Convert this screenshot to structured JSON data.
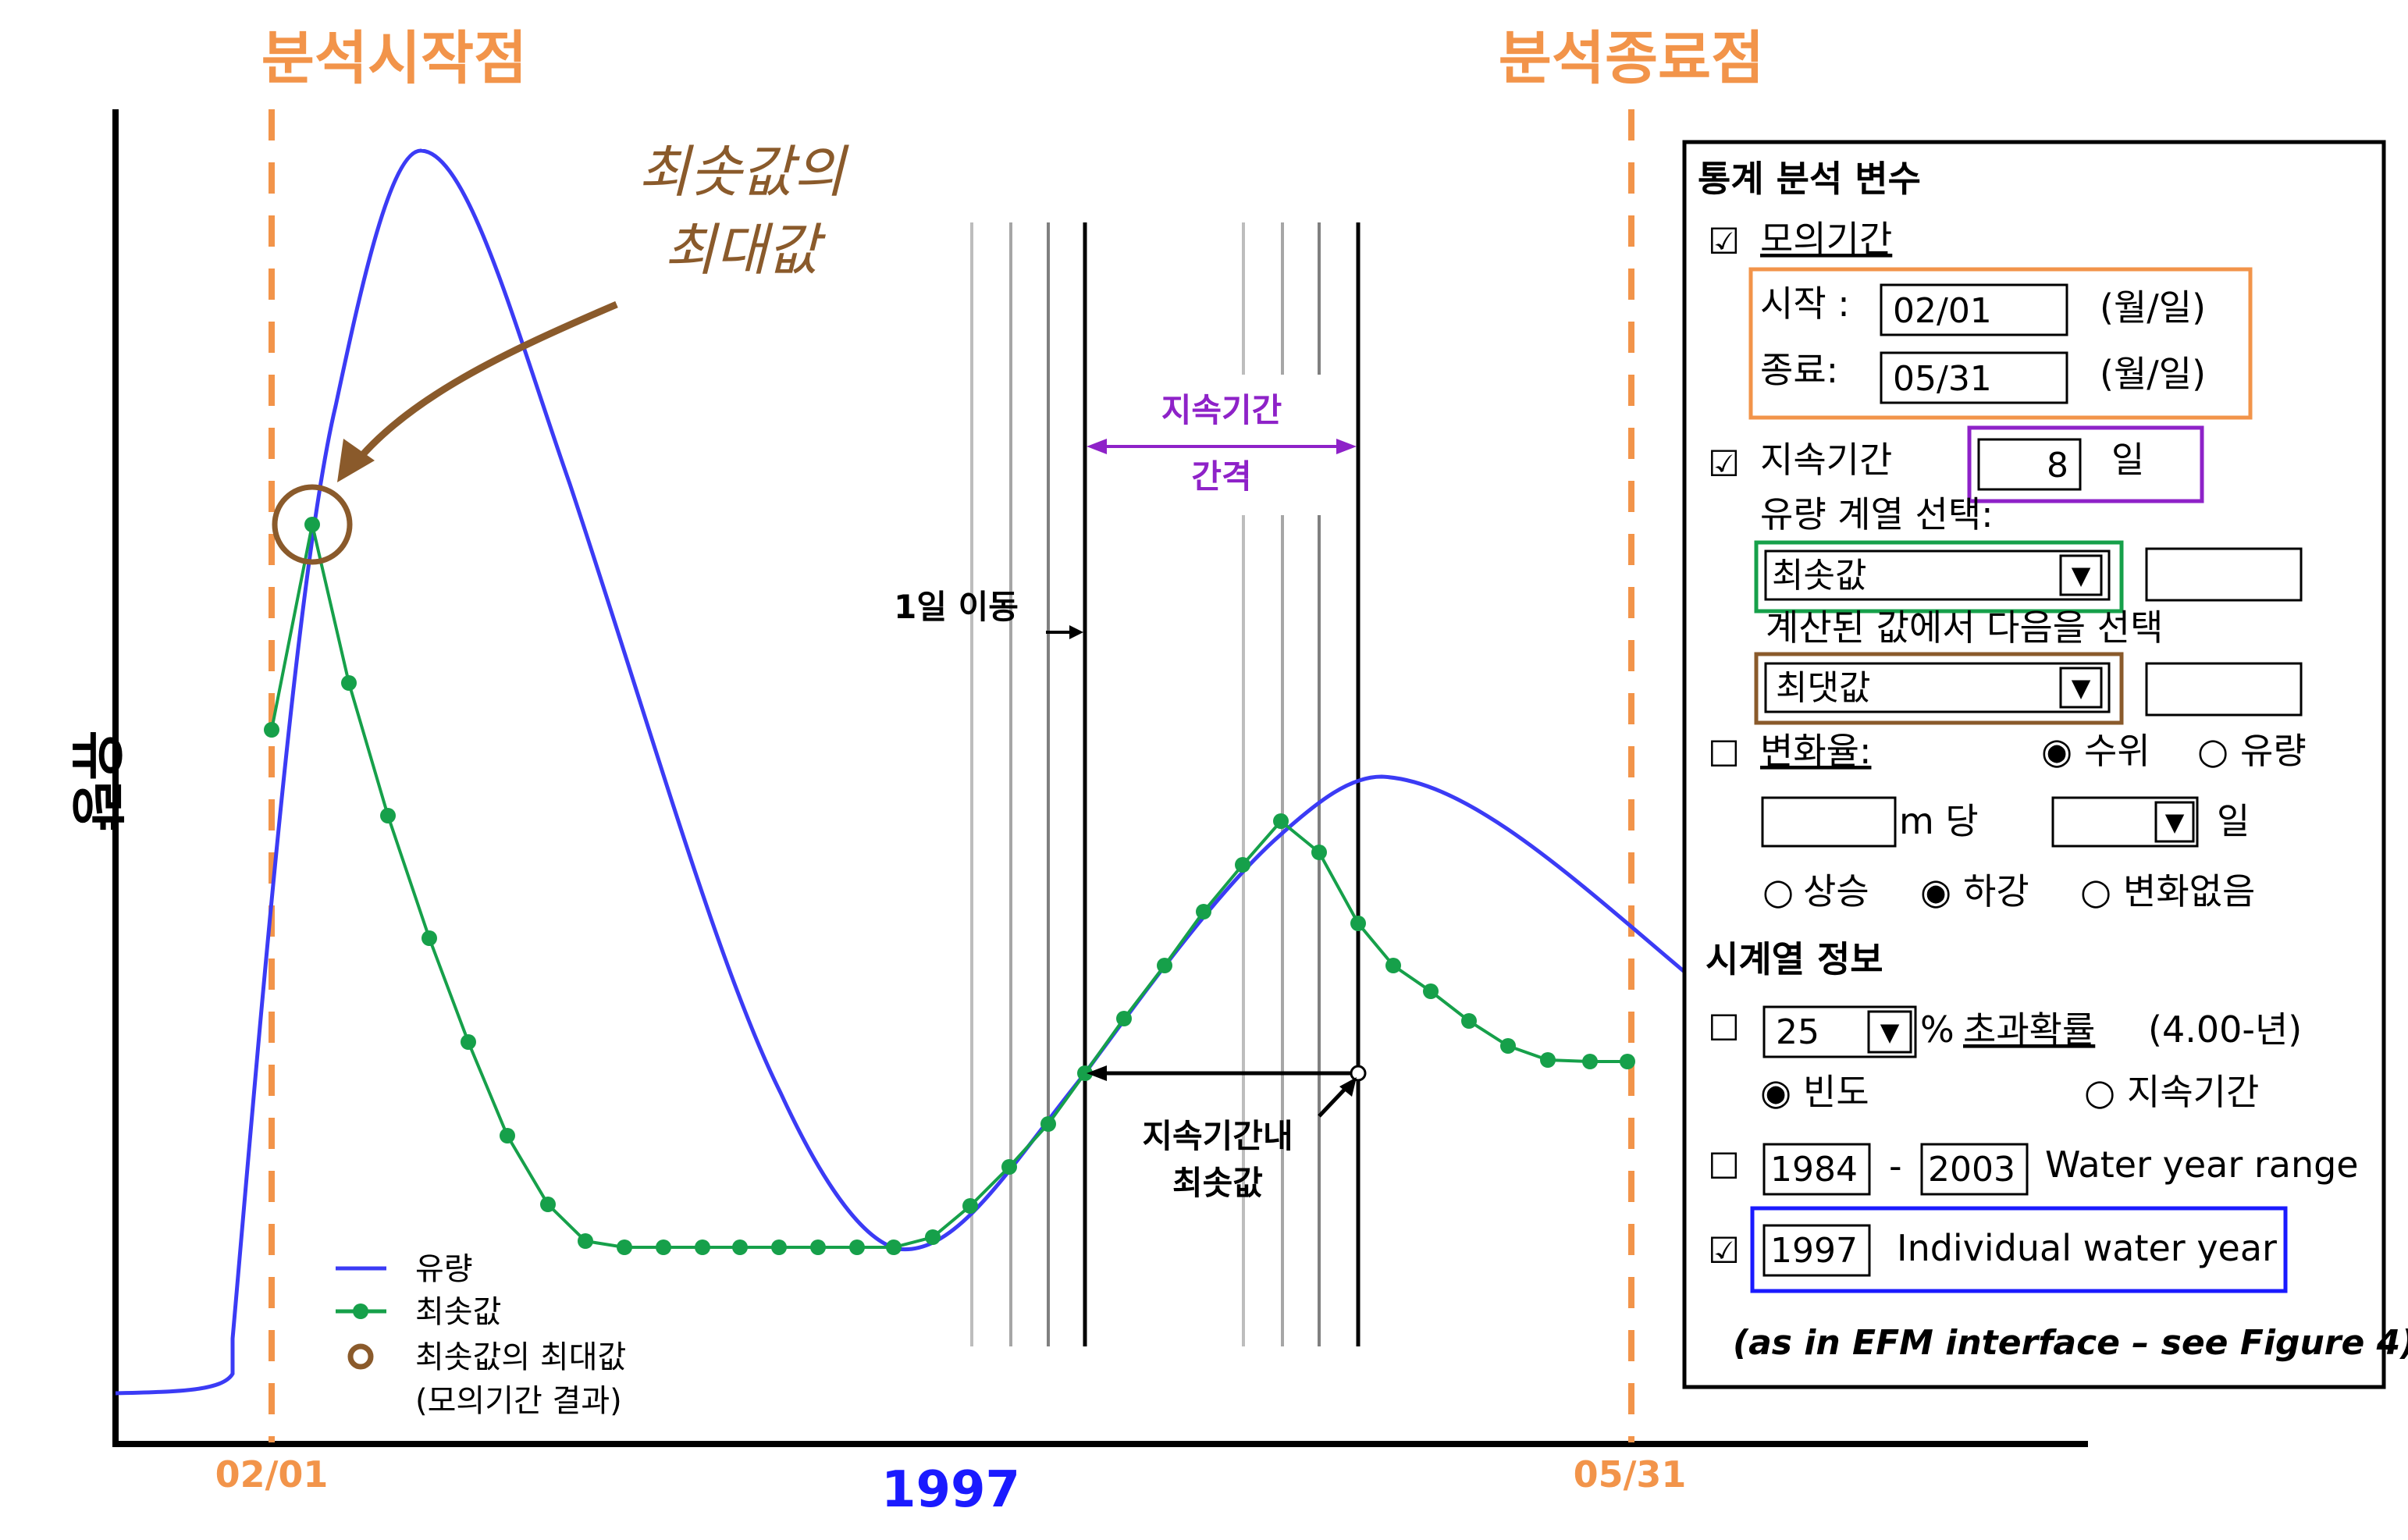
{
  "header": {
    "start_label": "분석시작점",
    "end_label": "분석종료점"
  },
  "axis": {
    "y_label": "유량",
    "x_start_tick": "02/01",
    "x_end_tick": "05/31",
    "year": "1997"
  },
  "annotations": {
    "peak_max_line1": "최솟값의",
    "peak_max_line2": "최대값",
    "duration_line1": "지속기간",
    "duration_line2": "간격",
    "shift": "1일 이동",
    "min_in_duration_line1": "지속기간내",
    "min_in_duration_line2": "최솟값"
  },
  "legend": {
    "flow": "유량",
    "min_series": "최솟값",
    "max_of_min_line1": "최솟값의 최대값",
    "max_of_min_line2": "(모의기간 결과)"
  },
  "colors": {
    "flow": "#3b3bf5",
    "min_series": "#16a04a",
    "start_end": "#f2944a",
    "peak_marker": "#8a5a2b",
    "duration": "#8e22c8"
  },
  "panel": {
    "title": "통계 분석 변수",
    "sim_period": {
      "checked": true,
      "label": "모의기간",
      "start_label": "시작 :",
      "start_value": "02/01",
      "start_unit": "(월/일)",
      "end_label": "종료:",
      "end_value": "05/31",
      "end_unit": "(월/일)"
    },
    "duration": {
      "checked": true,
      "label": "지속기간",
      "value": "8",
      "unit": "일"
    },
    "flow_series_label": "유량 계열 선택:",
    "flow_series_select": "최솟값",
    "computed_label": "계산된 값에서 다음을 선택",
    "computed_select": "최댓값",
    "rate": {
      "checked": false,
      "label": "변화율:",
      "opt_stage": "수위",
      "opt_flow": "유량",
      "stage_selected": true,
      "per_unit": "m 당",
      "day_unit": "일",
      "opt_rise": "상승",
      "opt_fall": "하강",
      "opt_nochange": "변화없음",
      "fall_selected": true
    },
    "ts_title": "시계열 정보",
    "exceed": {
      "checked": false,
      "value": "25",
      "pct": "%",
      "label": "초과확률",
      "suffix": "(4.00-년)"
    },
    "freq_label": "빈도",
    "freq_selected": true,
    "dur_label": "지속기간",
    "wy_range": {
      "checked": false,
      "start": "1984",
      "dash": "-",
      "end": "2003",
      "label": "Water year range"
    },
    "wy_individual": {
      "checked": true,
      "value": "1997",
      "label": "Individual water year"
    },
    "footnote": "(as in EFM interface – see Figure 4)"
  },
  "glyphs": {
    "checked_box": "☑",
    "unchecked_box": "☐",
    "radio_on": "◉",
    "radio_off": "○",
    "dropdown": "▼"
  }
}
